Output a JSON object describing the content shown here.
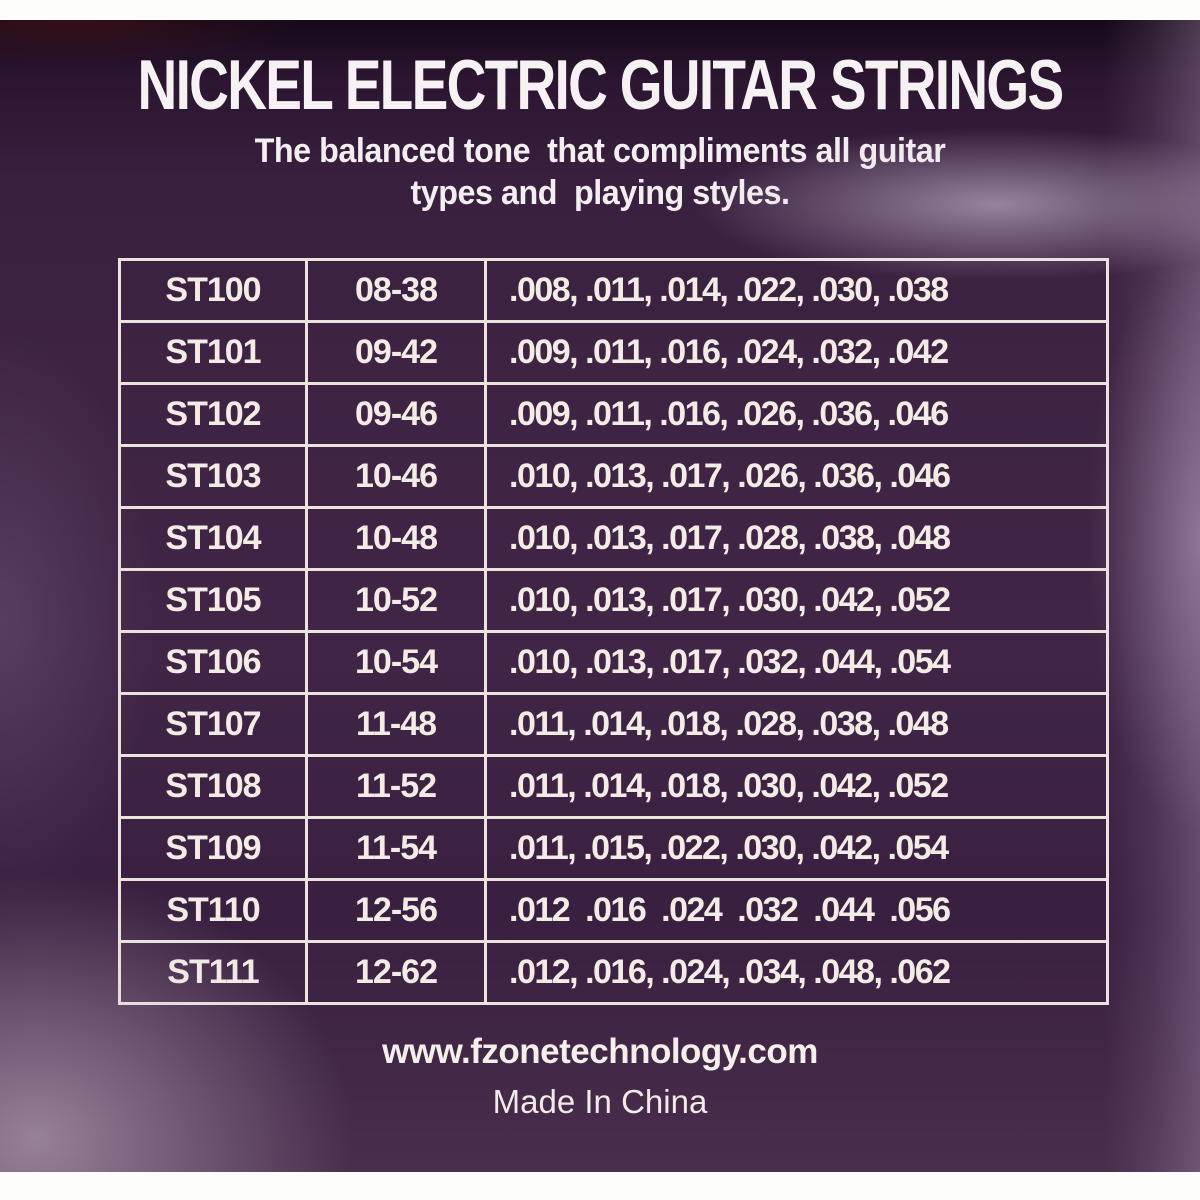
{
  "package": {
    "title": "NICKEL ELECTRIC GUITAR STRINGS",
    "subtitle_line1": "The balanced tone  that compliments all guitar",
    "subtitle_line2": "types and  playing styles.",
    "footer": {
      "website": "www.fzonetechnology.com",
      "origin": "Made In China"
    },
    "colors": {
      "background_purple": "#402546",
      "text_cream": "#f2ece5",
      "border_white": "#eae4dd",
      "scan_edge_white": "#fdfdfb"
    }
  },
  "table": {
    "rows": [
      {
        "model": "ST100",
        "range": "08-38",
        "gauges": ".008, .011, .014, .022, .030, .038"
      },
      {
        "model": "ST101",
        "range": "09-42",
        "gauges": ".009, .011, .016, .024, .032, .042"
      },
      {
        "model": "ST102",
        "range": "09-46",
        "gauges": ".009, .011, .016, .026, .036, .046"
      },
      {
        "model": "ST103",
        "range": "10-46",
        "gauges": ".010, .013, .017, .026, .036, .046"
      },
      {
        "model": "ST104",
        "range": "10-48",
        "gauges": ".010, .013, .017, .028, .038, .048"
      },
      {
        "model": "ST105",
        "range": "10-52",
        "gauges": ".010, .013, .017, .030, .042, .052"
      },
      {
        "model": "ST106",
        "range": "10-54",
        "gauges": ".010, .013, .017, .032, .044, .054"
      },
      {
        "model": "ST107",
        "range": "11-48",
        "gauges": ".011, .014, .018, .028, .038, .048"
      },
      {
        "model": "ST108",
        "range": "11-52",
        "gauges": ".011, .014, .018, .030, .042, .052"
      },
      {
        "model": "ST109",
        "range": "11-54",
        "gauges": ".011, .015, .022, .030, .042, .054"
      },
      {
        "model": "ST110",
        "range": "12-56",
        "gauges": ".012  .016  .024  .032  .044  .056"
      },
      {
        "model": "ST111",
        "range": "12-62",
        "gauges": ".012, .016, .024, .034, .048, .062"
      }
    ]
  }
}
